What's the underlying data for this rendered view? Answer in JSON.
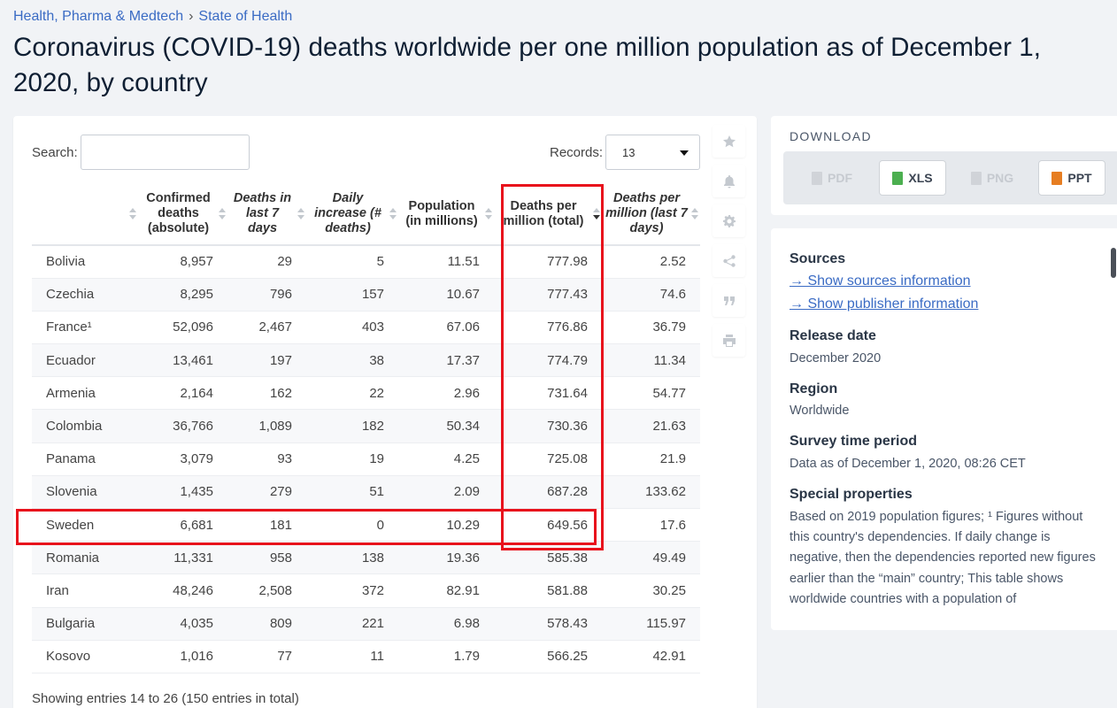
{
  "breadcrumb": {
    "first": "Health, Pharma & Medtech",
    "separator": "›",
    "second": "State of Health"
  },
  "title": "Coronavirus (COVID-19) deaths worldwide per one million population as of December 1, 2020, by country",
  "controls": {
    "search_label": "Search:",
    "records_label": "Records:",
    "records_value": "13"
  },
  "table": {
    "headers": [
      {
        "label": "",
        "italic": false
      },
      {
        "label": "Confirmed deaths (absolute)",
        "italic": false
      },
      {
        "label": "Deaths in last 7 days",
        "italic": true
      },
      {
        "label": "Daily increase (# deaths)",
        "italic": true
      },
      {
        "label": "Population (in millions)",
        "italic": false
      },
      {
        "label": "Deaths per million (total)",
        "italic": false,
        "sorted": true
      },
      {
        "label": "Deaths per million (last 7 days)",
        "italic": true
      }
    ],
    "rows": [
      [
        "Bolivia",
        "8,957",
        "29",
        "5",
        "11.51",
        "777.98",
        "2.52"
      ],
      [
        "Czechia",
        "8,295",
        "796",
        "157",
        "10.67",
        "777.43",
        "74.6"
      ],
      [
        "France¹",
        "52,096",
        "2,467",
        "403",
        "67.06",
        "776.86",
        "36.79"
      ],
      [
        "Ecuador",
        "13,461",
        "197",
        "38",
        "17.37",
        "774.79",
        "11.34"
      ],
      [
        "Armenia",
        "2,164",
        "162",
        "22",
        "2.96",
        "731.64",
        "54.77"
      ],
      [
        "Colombia",
        "36,766",
        "1,089",
        "182",
        "50.34",
        "730.36",
        "21.63"
      ],
      [
        "Panama",
        "3,079",
        "93",
        "19",
        "4.25",
        "725.08",
        "21.9"
      ],
      [
        "Slovenia",
        "1,435",
        "279",
        "51",
        "2.09",
        "687.28",
        "133.62"
      ],
      [
        "Sweden",
        "6,681",
        "181",
        "0",
        "10.29",
        "649.56",
        "17.6"
      ],
      [
        "Romania",
        "11,331",
        "958",
        "138",
        "19.36",
        "585.38",
        "49.49"
      ],
      [
        "Iran",
        "48,246",
        "2,508",
        "372",
        "82.91",
        "581.88",
        "30.25"
      ],
      [
        "Bulgaria",
        "4,035",
        "809",
        "221",
        "6.98",
        "578.43",
        "115.97"
      ],
      [
        "Kosovo",
        "1,016",
        "77",
        "11",
        "1.79",
        "566.25",
        "42.91"
      ]
    ],
    "entries_info": "Showing entries 14 to 26 (150 entries in total)"
  },
  "toolbar_icons": [
    "star-icon",
    "bell-icon",
    "gear-icon",
    "share-icon",
    "quote-icon",
    "print-icon"
  ],
  "download": {
    "title": "DOWNLOAD",
    "buttons": [
      {
        "label": "PDF",
        "enabled": false,
        "icon": "pdf-file-icon",
        "color": "#d0d3d8"
      },
      {
        "label": "XLS",
        "enabled": true,
        "icon": "xls-file-icon",
        "color": "#4caf50"
      },
      {
        "label": "PNG",
        "enabled": false,
        "icon": "png-file-icon",
        "color": "#d0d3d8"
      },
      {
        "label": "PPT",
        "enabled": true,
        "icon": "ppt-file-icon",
        "color": "#e67e22"
      }
    ]
  },
  "info": {
    "sources_heading": "Sources",
    "show_sources": "→ Show sources information",
    "show_publisher": "→ Show publisher information",
    "release_heading": "Release date",
    "release_value": "December 2020",
    "region_heading": "Region",
    "region_value": "Worldwide",
    "survey_heading": "Survey time period",
    "survey_value": "Data as of December 1, 2020, 08:26 CET",
    "special_heading": "Special properties",
    "special_text": "Based on 2019 population figures; ¹ Figures without this country's dependencies. If daily change is negative, then the dependencies reported new figures earlier than the “main” country; This table shows worldwide countries with a population of"
  },
  "highlight_color": "#e8121c"
}
